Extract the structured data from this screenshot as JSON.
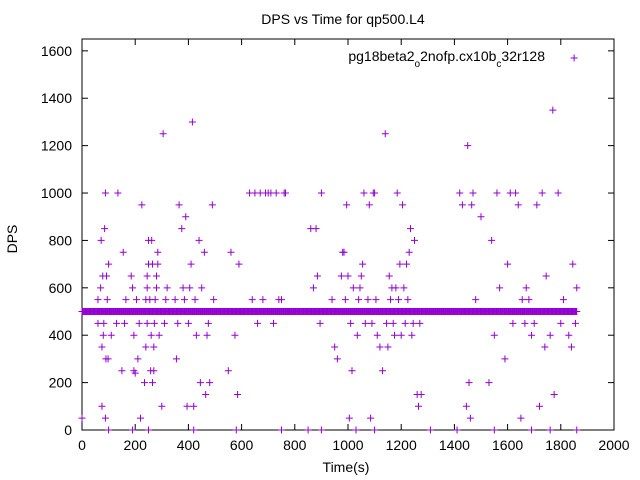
{
  "chart_data": {
    "type": "scatter",
    "title": "DPS vs Time for qp500.L4",
    "xlabel": "Time(s)",
    "ylabel": "DPS",
    "xlim": [
      0,
      2000
    ],
    "ylim": [
      0,
      1650
    ],
    "xticks": [
      0,
      200,
      400,
      600,
      800,
      1000,
      1200,
      1400,
      1600,
      1800,
      2000
    ],
    "yticks": [
      0,
      200,
      400,
      600,
      800,
      1000,
      1200,
      1400,
      1600
    ],
    "xtick_labels": [
      "0",
      "200",
      "400",
      "600",
      "800",
      "1000",
      "1200",
      "1400",
      "1600",
      "1800",
      "2000"
    ],
    "ytick_labels": [
      "0",
      "200",
      "400",
      "600",
      "800",
      "1000",
      "1200",
      "1400",
      "1600"
    ],
    "grid": false,
    "marker": "+",
    "legend": {
      "placement": "top-right",
      "parts": [
        {
          "text": "pg18beta2",
          "sub": false
        },
        {
          "text": "o",
          "sub": true
        },
        {
          "text": "2nofp.cx10b",
          "sub": false
        },
        {
          "text": "c",
          "sub": true
        },
        {
          "text": "32r128",
          "sub": false
        }
      ]
    },
    "series": [
      {
        "name": "pg18beta2_o2nofp.cx10b_c32r128",
        "color": "#9400d3",
        "baseline": {
          "value": 500,
          "x_start": 0,
          "x_end": 1860,
          "step": 3
        },
        "points": [
          [
            0,
            50
          ],
          [
            60,
            450
          ],
          [
            60,
            550
          ],
          [
            65,
            500
          ],
          [
            70,
            600
          ],
          [
            72,
            800
          ],
          [
            75,
            100
          ],
          [
            75,
            350
          ],
          [
            78,
            650
          ],
          [
            80,
            400
          ],
          [
            82,
            450
          ],
          [
            85,
            850
          ],
          [
            88,
            1000
          ],
          [
            88,
            50
          ],
          [
            90,
            300
          ],
          [
            92,
            650
          ],
          [
            95,
            550
          ],
          [
            98,
            300
          ],
          [
            100,
            700
          ],
          [
            100,
            0
          ],
          [
            105,
            500
          ],
          [
            110,
            400
          ],
          [
            130,
            450
          ],
          [
            135,
            1000
          ],
          [
            150,
            250
          ],
          [
            155,
            750
          ],
          [
            160,
            450
          ],
          [
            165,
            550
          ],
          [
            185,
            650
          ],
          [
            190,
            600
          ],
          [
            195,
            250
          ],
          [
            195,
            400
          ],
          [
            200,
            240
          ],
          [
            205,
            550
          ],
          [
            210,
            300
          ],
          [
            215,
            450
          ],
          [
            220,
            50
          ],
          [
            225,
            950
          ],
          [
            230,
            500
          ],
          [
            235,
            200
          ],
          [
            240,
            350
          ],
          [
            240,
            550
          ],
          [
            245,
            600
          ],
          [
            245,
            450
          ],
          [
            245,
            650
          ],
          [
            250,
            800
          ],
          [
            250,
            700
          ],
          [
            255,
            550
          ],
          [
            258,
            250
          ],
          [
            260,
            400
          ],
          [
            262,
            800
          ],
          [
            265,
            700
          ],
          [
            265,
            200
          ],
          [
            270,
            350
          ],
          [
            270,
            250
          ],
          [
            272,
            450
          ],
          [
            275,
            550
          ],
          [
            280,
            600
          ],
          [
            280,
            650
          ],
          [
            285,
            700
          ],
          [
            285,
            750
          ],
          [
            290,
            400
          ],
          [
            295,
            500
          ],
          [
            300,
            100
          ],
          [
            305,
            1250
          ],
          [
            310,
            450
          ],
          [
            315,
            550
          ],
          [
            320,
            600
          ],
          [
            350,
            550
          ],
          [
            355,
            300
          ],
          [
            360,
            450
          ],
          [
            365,
            950
          ],
          [
            370,
            500
          ],
          [
            375,
            850
          ],
          [
            380,
            600
          ],
          [
            385,
            550
          ],
          [
            390,
            900
          ],
          [
            395,
            100
          ],
          [
            400,
            450
          ],
          [
            405,
            600
          ],
          [
            410,
            700
          ],
          [
            415,
            1300
          ],
          [
            420,
            100
          ],
          [
            425,
            550
          ],
          [
            430,
            400
          ],
          [
            440,
            800
          ],
          [
            445,
            200
          ],
          [
            450,
            600
          ],
          [
            455,
            500
          ],
          [
            460,
            750
          ],
          [
            465,
            150
          ],
          [
            470,
            400
          ],
          [
            475,
            450
          ],
          [
            480,
            200
          ],
          [
            490,
            950
          ],
          [
            495,
            550
          ],
          [
            550,
            250
          ],
          [
            560,
            750
          ],
          [
            575,
            400
          ],
          [
            585,
            150
          ],
          [
            590,
            700
          ],
          [
            600,
            500
          ],
          [
            630,
            1000
          ],
          [
            640,
            550
          ],
          [
            650,
            1000
          ],
          [
            660,
            450
          ],
          [
            670,
            1000
          ],
          [
            680,
            550
          ],
          [
            690,
            1000
          ],
          [
            700,
            1000
          ],
          [
            710,
            1000
          ],
          [
            720,
            450
          ],
          [
            730,
            1000
          ],
          [
            740,
            550
          ],
          [
            750,
            550
          ],
          [
            760,
            1000
          ],
          [
            765,
            1000
          ],
          [
            775,
            500
          ],
          [
            860,
            850
          ],
          [
            870,
            600
          ],
          [
            880,
            850
          ],
          [
            885,
            650
          ],
          [
            895,
            450
          ],
          [
            900,
            1000
          ],
          [
            920,
            500
          ],
          [
            940,
            550
          ],
          [
            950,
            350
          ],
          [
            960,
            300
          ],
          [
            975,
            650
          ],
          [
            980,
            750
          ],
          [
            985,
            750
          ],
          [
            990,
            550
          ],
          [
            995,
            950
          ],
          [
            1000,
            650
          ],
          [
            1005,
            50
          ],
          [
            1010,
            450
          ],
          [
            1015,
            250
          ],
          [
            1020,
            600
          ],
          [
            1025,
            500
          ],
          [
            1030,
            0
          ],
          [
            1035,
            400
          ],
          [
            1040,
            550
          ],
          [
            1045,
            600
          ],
          [
            1050,
            650
          ],
          [
            1055,
            700
          ],
          [
            1060,
            1000
          ],
          [
            1065,
            450
          ],
          [
            1070,
            500
          ],
          [
            1075,
            550
          ],
          [
            1080,
            950
          ],
          [
            1085,
            50
          ],
          [
            1090,
            450
          ],
          [
            1095,
            1000
          ],
          [
            1100,
            1000
          ],
          [
            1105,
            550
          ],
          [
            1110,
            400
          ],
          [
            1120,
            350
          ],
          [
            1130,
            250
          ],
          [
            1140,
            1250
          ],
          [
            1145,
            450
          ],
          [
            1150,
            350
          ],
          [
            1155,
            650
          ],
          [
            1160,
            550
          ],
          [
            1165,
            600
          ],
          [
            1170,
            450
          ],
          [
            1175,
            400
          ],
          [
            1180,
            600
          ],
          [
            1185,
            1000
          ],
          [
            1190,
            550
          ],
          [
            1195,
            700
          ],
          [
            1200,
            400
          ],
          [
            1205,
            950
          ],
          [
            1210,
            600
          ],
          [
            1215,
            450
          ],
          [
            1220,
            700
          ],
          [
            1225,
            550
          ],
          [
            1230,
            750
          ],
          [
            1235,
            850
          ],
          [
            1240,
            400
          ],
          [
            1245,
            450
          ],
          [
            1250,
            800
          ],
          [
            1255,
            500
          ],
          [
            1260,
            150
          ],
          [
            1265,
            100
          ],
          [
            1270,
            450
          ],
          [
            1275,
            150
          ],
          [
            1420,
            1000
          ],
          [
            1430,
            950
          ],
          [
            1440,
            500
          ],
          [
            1445,
            100
          ],
          [
            1450,
            1200
          ],
          [
            1455,
            200
          ],
          [
            1460,
            50
          ],
          [
            1465,
            950
          ],
          [
            1470,
            1000
          ],
          [
            1480,
            550
          ],
          [
            1500,
            900
          ],
          [
            1530,
            200
          ],
          [
            1540,
            800
          ],
          [
            1550,
            400
          ],
          [
            1560,
            1000
          ],
          [
            1570,
            600
          ],
          [
            1590,
            300
          ],
          [
            1600,
            700
          ],
          [
            1610,
            1000
          ],
          [
            1620,
            450
          ],
          [
            1630,
            1000
          ],
          [
            1640,
            950
          ],
          [
            1650,
            50
          ],
          [
            1655,
            550
          ],
          [
            1660,
            500
          ],
          [
            1665,
            450
          ],
          [
            1670,
            600
          ],
          [
            1680,
            550
          ],
          [
            1690,
            400
          ],
          [
            1700,
            450
          ],
          [
            1710,
            950
          ],
          [
            1720,
            100
          ],
          [
            1730,
            1000
          ],
          [
            1740,
            350
          ],
          [
            1745,
            650
          ],
          [
            1760,
            400
          ],
          [
            1770,
            1350
          ],
          [
            1775,
            150
          ],
          [
            1790,
            1000
          ],
          [
            1800,
            450
          ],
          [
            1810,
            550
          ],
          [
            1820,
            500
          ],
          [
            1830,
            400
          ],
          [
            1840,
            350
          ],
          [
            1845,
            700
          ],
          [
            1850,
            1570
          ],
          [
            1855,
            450
          ],
          [
            1860,
            600
          ],
          [
            1860,
            0
          ],
          [
            1100,
            0
          ],
          [
            420,
            0
          ],
          [
            580,
            0
          ],
          [
            750,
            0
          ],
          [
            850,
            0
          ],
          [
            900,
            0
          ],
          [
            1310,
            0
          ],
          [
            1410,
            0
          ],
          [
            1550,
            0
          ],
          [
            1690,
            0
          ],
          [
            1760,
            0
          ],
          [
            250,
            0
          ],
          [
            190,
            0
          ]
        ]
      }
    ]
  }
}
